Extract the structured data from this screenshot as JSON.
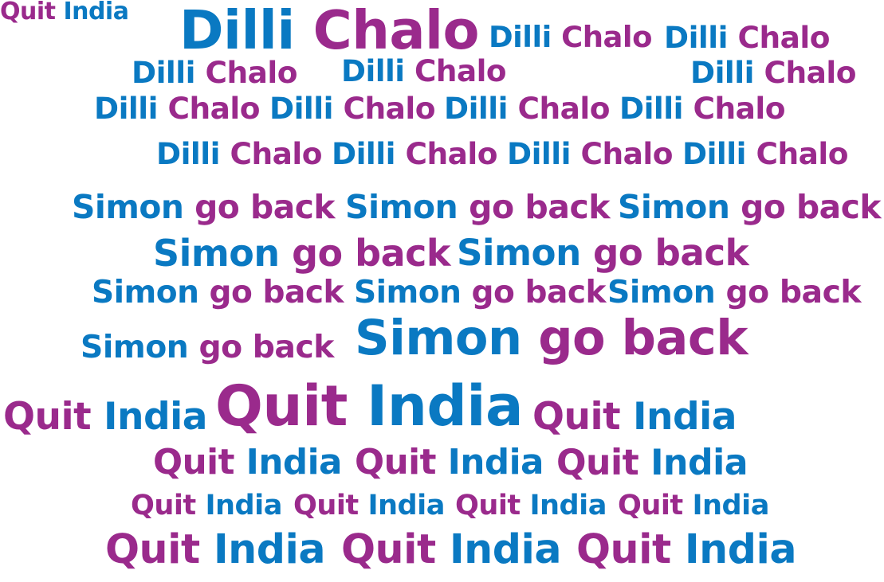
{
  "colors": {
    "blue": "#0a79c2",
    "purple": "#9a2a8c"
  },
  "phrases": [
    {
      "w1": "Dilli",
      "w2": "Chalo",
      "c1": "blue",
      "c2": "purple"
    },
    {
      "w1": "Dilli",
      "w2": "Chalo",
      "c1": "blue",
      "c2": "purple"
    },
    {
      "w1": "Dilli",
      "w2": "Chalo",
      "c1": "blue",
      "c2": "purple"
    },
    {
      "w1": "Dilli",
      "w2": "Chalo",
      "c1": "blue",
      "c2": "purple"
    },
    {
      "w1": "Dilli",
      "w2": "Chalo",
      "c1": "blue",
      "c2": "purple"
    },
    {
      "w1": "Dilli",
      "w2": "Chalo",
      "c1": "blue",
      "c2": "purple"
    },
    {
      "w1": "Dilli",
      "w2": "Chalo",
      "c1": "blue",
      "c2": "purple"
    },
    {
      "w1": "Dilli",
      "w2": "Chalo",
      "c1": "blue",
      "c2": "purple"
    },
    {
      "w1": "Dilli",
      "w2": "Chalo",
      "c1": "blue",
      "c2": "purple"
    },
    {
      "w1": "Dilli",
      "w2": "Chalo",
      "c1": "blue",
      "c2": "purple"
    },
    {
      "w1": "Dilli",
      "w2": "Chalo",
      "c1": "blue",
      "c2": "purple"
    },
    {
      "w1": "Dilli",
      "w2": "Chalo",
      "c1": "blue",
      "c2": "purple"
    },
    {
      "w1": "Dilli",
      "w2": "Chalo",
      "c1": "blue",
      "c2": "purple"
    },
    {
      "w1": "Dilli",
      "w2": "Chalo",
      "c1": "blue",
      "c2": "purple"
    },
    {
      "w1": "Simon",
      "w2": "go back",
      "c1": "blue",
      "c2": "purple"
    },
    {
      "w1": "Simon",
      "w2": "go back",
      "c1": "blue",
      "c2": "purple"
    },
    {
      "w1": "Simon",
      "w2": "go back",
      "c1": "blue",
      "c2": "purple"
    },
    {
      "w1": "Simon",
      "w2": "go back",
      "c1": "blue",
      "c2": "purple"
    },
    {
      "w1": "Simon",
      "w2": "go back",
      "c1": "blue",
      "c2": "purple"
    },
    {
      "w1": "Simon",
      "w2": "go back",
      "c1": "blue",
      "c2": "purple"
    },
    {
      "w1": "Simon",
      "w2": "go back",
      "c1": "blue",
      "c2": "purple"
    },
    {
      "w1": "Simon",
      "w2": "go back",
      "c1": "blue",
      "c2": "purple"
    },
    {
      "w1": "Simon",
      "w2": "go back",
      "c1": "blue",
      "c2": "purple"
    },
    {
      "w1": "Simon",
      "w2": "go back",
      "c1": "blue",
      "c2": "purple"
    },
    {
      "w1": "Quit",
      "w2": "India",
      "c1": "purple",
      "c2": "blue"
    },
    {
      "w1": "Quit",
      "w2": "India",
      "c1": "purple",
      "c2": "blue"
    },
    {
      "w1": "Quit",
      "w2": "India",
      "c1": "purple",
      "c2": "blue"
    },
    {
      "w1": "Quit",
      "w2": "India",
      "c1": "purple",
      "c2": "blue"
    },
    {
      "w1": "Quit",
      "w2": "India",
      "c1": "purple",
      "c2": "blue"
    },
    {
      "w1": "Quit",
      "w2": "India",
      "c1": "purple",
      "c2": "blue"
    },
    {
      "w1": "Quit",
      "w2": "India",
      "c1": "purple",
      "c2": "blue"
    },
    {
      "w1": "Quit",
      "w2": "India",
      "c1": "purple",
      "c2": "blue"
    },
    {
      "w1": "Quit",
      "w2": "India",
      "c1": "purple",
      "c2": "blue"
    },
    {
      "w1": "Quit",
      "w2": "India",
      "c1": "purple",
      "c2": "blue"
    },
    {
      "w1": "Quit",
      "w2": "India",
      "c1": "purple",
      "c2": "blue"
    },
    {
      "w1": "Quit",
      "w2": "India",
      "c1": "purple",
      "c2": "blue"
    },
    {
      "w1": "Quit",
      "w2": "India",
      "c1": "purple",
      "c2": "blue"
    },
    {
      "w1": "Quit",
      "w2": "India",
      "c1": "purple",
      "c2": "blue"
    }
  ]
}
